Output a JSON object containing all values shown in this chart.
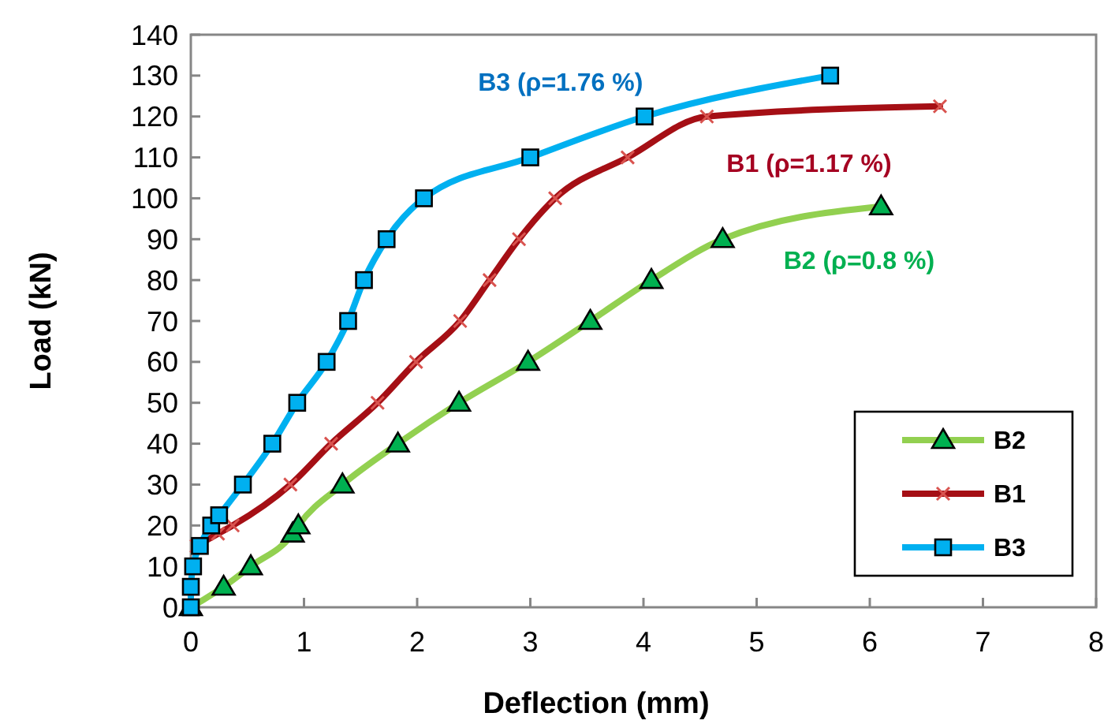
{
  "chart_data": {
    "type": "line",
    "xlabel": "Deflection (mm)",
    "ylabel": "Load (kN)",
    "xlim": [
      0,
      8
    ],
    "xticks": [
      0,
      1,
      2,
      3,
      4,
      5,
      6,
      7,
      8
    ],
    "ylim": [
      0,
      140
    ],
    "yticks": [
      0,
      10,
      20,
      30,
      40,
      50,
      60,
      70,
      80,
      90,
      100,
      110,
      120,
      130,
      140
    ],
    "grid": false,
    "legend": "bottom right",
    "line_style": "solid",
    "series": [
      {
        "name": "B2",
        "color": "#92d050",
        "marker": "triangle",
        "x": [
          0,
          0.29,
          0.53,
          0.9,
          0.95,
          1.34,
          1.83,
          2.37,
          2.98,
          3.53,
          4.07,
          4.7,
          6.1
        ],
        "values": [
          0,
          5,
          10,
          18,
          20,
          30,
          40,
          50,
          60,
          70,
          80,
          90,
          98
        ]
      },
      {
        "name": "B1",
        "color": "#a50f15",
        "marker": "cross",
        "x": [
          0.05,
          0.24,
          0.37,
          0.88,
          1.24,
          1.65,
          1.99,
          2.38,
          2.64,
          2.9,
          3.22,
          3.86,
          4.56,
          6.62
        ],
        "values": [
          15,
          18,
          20,
          30,
          40,
          50,
          60,
          70,
          80,
          90,
          100,
          110,
          120,
          122.5
        ]
      },
      {
        "name": "B3",
        "color": "#00b0f0",
        "marker": "square",
        "x": [
          0,
          0,
          0.02,
          0.08,
          0.18,
          0.25,
          0.46,
          0.72,
          0.94,
          1.2,
          1.39,
          1.53,
          1.73,
          2.06,
          3.0,
          4.01,
          5.65
        ],
        "values": [
          0,
          5,
          10,
          15,
          20,
          22.5,
          30,
          40,
          50,
          60,
          70,
          80,
          90,
          100,
          110,
          120,
          130
        ]
      }
    ],
    "annotations": [
      "B2 (ρ=0.8 %)",
      "B1 (ρ=1.17 %)",
      "B3 (ρ=1.76 %)"
    ]
  }
}
